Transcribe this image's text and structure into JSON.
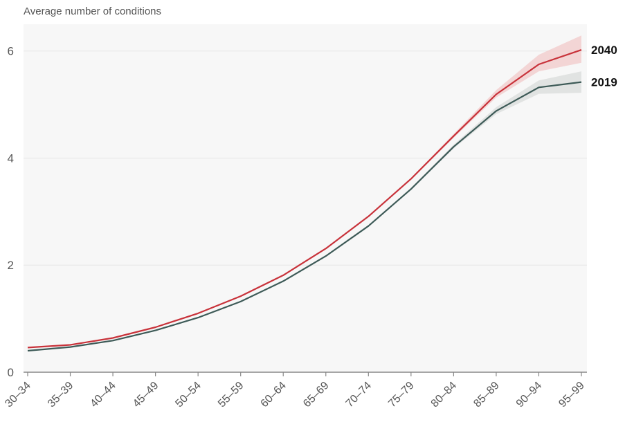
{
  "chart_data": {
    "type": "line",
    "ylabel": "Average number of conditions",
    "xlabel": "",
    "ylim": [
      0,
      6.5
    ],
    "yticks": [
      0,
      2,
      4,
      6
    ],
    "grid": true,
    "categories": [
      "30–34",
      "35–39",
      "40–44",
      "45–49",
      "50–54",
      "55–59",
      "60–64",
      "65–69",
      "70–74",
      "75–79",
      "80–84",
      "85–89",
      "90–94",
      "95–99"
    ],
    "series": [
      {
        "name": "2040",
        "color": "#c8323a",
        "band_color": "#f2c9c9",
        "values": [
          0.46,
          0.51,
          0.64,
          0.84,
          1.1,
          1.42,
          1.81,
          2.31,
          2.91,
          3.61,
          4.41,
          5.19,
          5.75,
          6.02
        ],
        "lower": [
          0.45,
          0.5,
          0.63,
          0.83,
          1.09,
          1.41,
          1.8,
          2.3,
          2.9,
          3.6,
          4.38,
          5.13,
          5.62,
          5.78
        ],
        "upper": [
          0.47,
          0.52,
          0.65,
          0.85,
          1.11,
          1.43,
          1.82,
          2.32,
          2.92,
          3.63,
          4.45,
          5.27,
          5.93,
          6.29
        ]
      },
      {
        "name": "2019",
        "color": "#3d5a57",
        "band_color": "#d9dcdb",
        "values": [
          0.4,
          0.47,
          0.59,
          0.78,
          1.02,
          1.32,
          1.7,
          2.17,
          2.73,
          3.42,
          4.21,
          4.88,
          5.32,
          5.42
        ],
        "lower": [
          0.39,
          0.46,
          0.58,
          0.77,
          1.01,
          1.31,
          1.69,
          2.16,
          2.72,
          3.41,
          4.18,
          4.82,
          5.2,
          5.22
        ],
        "upper": [
          0.41,
          0.48,
          0.6,
          0.79,
          1.03,
          1.33,
          1.71,
          2.18,
          2.74,
          3.44,
          4.25,
          4.95,
          5.45,
          5.62
        ]
      }
    ]
  }
}
